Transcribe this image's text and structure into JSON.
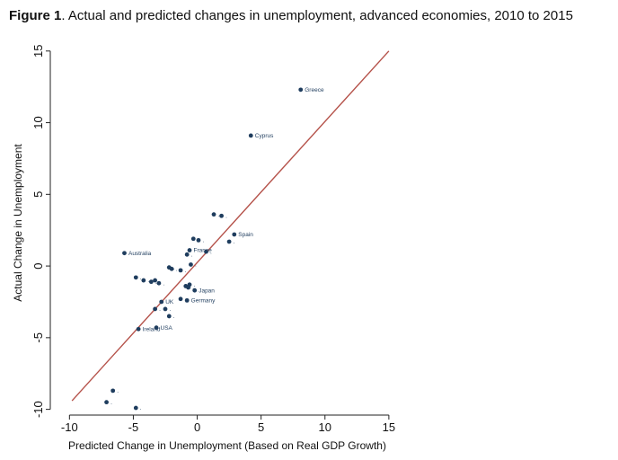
{
  "title": {
    "prefix": "Figure 1",
    "text": ". Actual and predicted changes in unemployment, advanced economies, 2010 to 2015"
  },
  "chart_data": {
    "type": "scatter",
    "xlabel": "Predicted Change in Unemployment (Based on Real GDP Growth)",
    "ylabel": "Actual Change in Unemployment",
    "xlim": [
      -11.5,
      15.5
    ],
    "ylim": [
      -10.4,
      15.3
    ],
    "xticks": [
      -10,
      -5,
      0,
      5,
      10,
      15
    ],
    "yticks": [
      -10,
      -5,
      0,
      5,
      10,
      15
    ],
    "xtick_labels": [
      "-10",
      "-5",
      "0",
      "5",
      "10",
      "15"
    ],
    "ytick_labels": [
      "-10",
      "-5",
      "0",
      "5",
      "10",
      "15"
    ],
    "grid": false,
    "fit_line": {
      "x": [
        -9.8,
        15
      ],
      "y": [
        -9.4,
        15
      ],
      "color": "#b5524a"
    },
    "marker_color": "#1f3d5e",
    "points": [
      {
        "x": 8.1,
        "y": 12.3,
        "label": "Greece"
      },
      {
        "x": 4.2,
        "y": 9.1,
        "label": "Cyprus"
      },
      {
        "x": 1.3,
        "y": 3.6,
        "label": "."
      },
      {
        "x": 1.9,
        "y": 3.5,
        "label": "."
      },
      {
        "x": 2.9,
        "y": 2.2,
        "label": "Spain"
      },
      {
        "x": 2.5,
        "y": 1.7,
        "label": "."
      },
      {
        "x": -0.3,
        "y": 1.9,
        "label": "."
      },
      {
        "x": 0.1,
        "y": 1.8,
        "label": "."
      },
      {
        "x": -0.6,
        "y": 1.1,
        "label": "France"
      },
      {
        "x": -0.8,
        "y": 0.8,
        "label": "."
      },
      {
        "x": 0.7,
        "y": 1.0,
        "label": "."
      },
      {
        "x": -5.7,
        "y": 0.9,
        "label": "Australia"
      },
      {
        "x": -0.5,
        "y": 0.1,
        "label": "."
      },
      {
        "x": -2.2,
        "y": -0.1,
        "label": "."
      },
      {
        "x": -2.0,
        "y": -0.2,
        "label": "."
      },
      {
        "x": -1.3,
        "y": -0.3,
        "label": "."
      },
      {
        "x": -4.8,
        "y": -0.8,
        "label": "."
      },
      {
        "x": -4.2,
        "y": -1.0,
        "label": "."
      },
      {
        "x": -3.6,
        "y": -1.1,
        "label": "."
      },
      {
        "x": -3.3,
        "y": -1.0,
        "label": "."
      },
      {
        "x": -3.0,
        "y": -1.2,
        "label": "."
      },
      {
        "x": -0.9,
        "y": -1.4,
        "label": "."
      },
      {
        "x": -0.6,
        "y": -1.3,
        "label": "."
      },
      {
        "x": -0.7,
        "y": -1.5,
        "label": "."
      },
      {
        "x": -0.2,
        "y": -1.7,
        "label": "Japan"
      },
      {
        "x": -1.3,
        "y": -2.3,
        "label": "."
      },
      {
        "x": -0.8,
        "y": -2.4,
        "label": "Germany"
      },
      {
        "x": -2.8,
        "y": -2.5,
        "label": "UK"
      },
      {
        "x": -3.3,
        "y": -3.0,
        "label": "."
      },
      {
        "x": -2.5,
        "y": -3.0,
        "label": "."
      },
      {
        "x": -2.2,
        "y": -3.5,
        "label": "."
      },
      {
        "x": -3.2,
        "y": -4.3,
        "label": "USA"
      },
      {
        "x": -4.6,
        "y": -4.4,
        "label": "Ireland"
      },
      {
        "x": -6.6,
        "y": -8.7,
        "label": "."
      },
      {
        "x": -7.1,
        "y": -9.5,
        "label": "."
      },
      {
        "x": -4.8,
        "y": -9.9,
        "label": "."
      }
    ]
  }
}
